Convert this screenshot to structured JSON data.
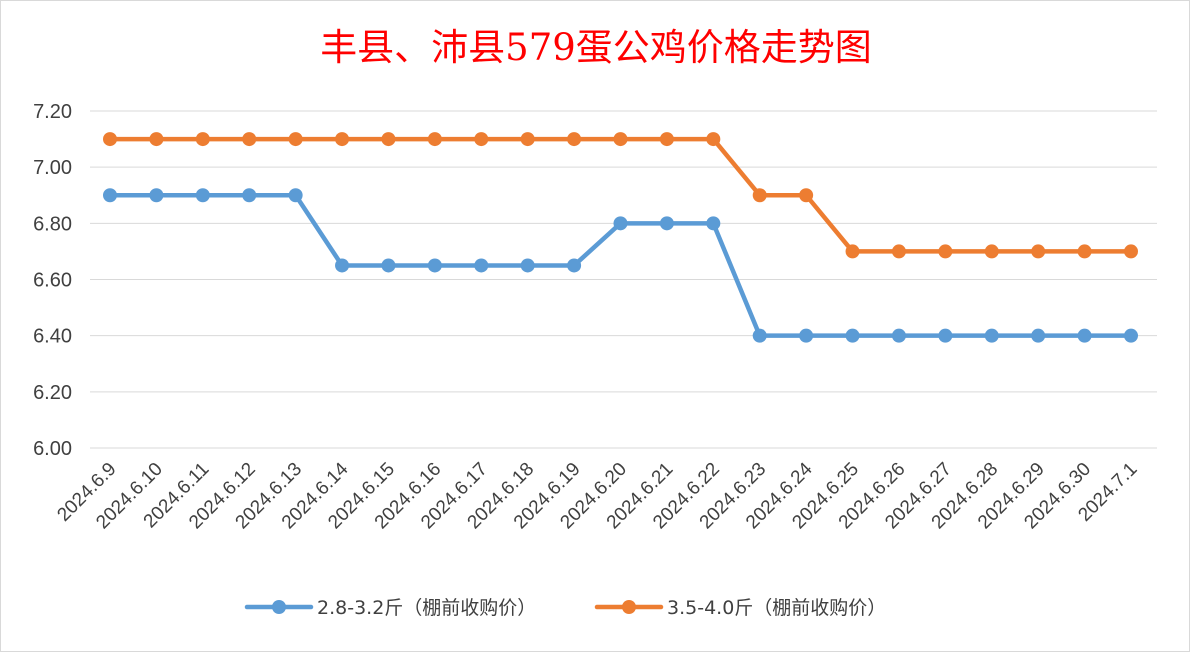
{
  "chart_data": {
    "type": "line",
    "title": "丰县、沛县579蛋公鸡价格走势图",
    "title_color": "#ff0000",
    "xlabel": "",
    "ylabel": "",
    "ylim": [
      6.0,
      7.2
    ],
    "y_ticks": [
      "6.00",
      "6.20",
      "6.40",
      "6.60",
      "6.80",
      "7.00",
      "7.20"
    ],
    "grid": true,
    "legend_position": "bottom",
    "categories": [
      "2024.6.9",
      "2024.6.10",
      "2024.6.11",
      "2024.6.12",
      "2024.6.13",
      "2024.6.14",
      "2024.6.15",
      "2024.6.16",
      "2024.6.17",
      "2024.6.18",
      "2024.6.19",
      "2024.6.20",
      "2024.6.21",
      "2024.6.22",
      "2024.6.23",
      "2024.6.24",
      "2024.6.25",
      "2024.6.26",
      "2024.6.27",
      "2024.6.28",
      "2024.6.29",
      "2024.6.30",
      "2024.7.1"
    ],
    "series": [
      {
        "name": "2.8-3.2斤（棚前收购价）",
        "color": "#5b9bd5",
        "values": [
          6.9,
          6.9,
          6.9,
          6.9,
          6.9,
          6.65,
          6.65,
          6.65,
          6.65,
          6.65,
          6.65,
          6.8,
          6.8,
          6.8,
          6.4,
          6.4,
          6.4,
          6.4,
          6.4,
          6.4,
          6.4,
          6.4,
          6.4
        ]
      },
      {
        "name": "3.5-4.0斤（棚前收购价）",
        "color": "#ed7d31",
        "values": [
          7.1,
          7.1,
          7.1,
          7.1,
          7.1,
          7.1,
          7.1,
          7.1,
          7.1,
          7.1,
          7.1,
          7.1,
          7.1,
          7.1,
          6.9,
          6.9,
          6.7,
          6.7,
          6.7,
          6.7,
          6.7,
          6.7,
          6.7
        ]
      }
    ]
  }
}
